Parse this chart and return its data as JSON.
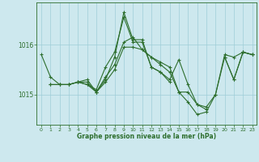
{
  "title": "Graphe pression niveau de la mer (hPa)",
  "bg_color": "#cde8ee",
  "grid_color": "#9ecdd8",
  "line_color": "#2d6e2d",
  "xlim_min": -0.5,
  "xlim_max": 23.5,
  "ylim_min": 1014.4,
  "ylim_max": 1016.85,
  "yticks": [
    1015,
    1016
  ],
  "xticks": [
    0,
    1,
    2,
    3,
    4,
    5,
    6,
    7,
    8,
    9,
    10,
    11,
    12,
    13,
    14,
    15,
    16,
    17,
    18,
    19,
    20,
    21,
    22,
    23
  ],
  "series1": [
    1015.8,
    1015.35,
    1015.2,
    1015.2,
    1015.25,
    1015.2,
    1015.05,
    1015.35,
    1015.6,
    1016.05,
    1016.15,
    1015.9,
    1015.75,
    1015.6,
    1015.45,
    1015.05,
    1015.05,
    1014.8,
    1014.75,
    1015.0,
    1015.8,
    1015.75,
    1015.85,
    1015.8
  ],
  "series2": [
    null,
    1015.2,
    1015.2,
    1015.2,
    1015.25,
    1015.2,
    1015.1,
    1015.55,
    1015.85,
    1016.55,
    1016.05,
    1016.05,
    1015.55,
    1015.45,
    1015.3,
    1015.7,
    1015.2,
    1014.8,
    1014.7,
    null,
    null,
    null,
    null,
    null
  ],
  "series3": [
    null,
    null,
    null,
    null,
    1015.25,
    1015.3,
    1015.05,
    1015.3,
    1015.75,
    1016.65,
    1016.1,
    1016.1,
    1015.55,
    1015.45,
    1015.25,
    null,
    null,
    null,
    null,
    null,
    null,
    null,
    null,
    null
  ],
  "series4": [
    null,
    null,
    null,
    null,
    null,
    null,
    null,
    null,
    null,
    null,
    null,
    null,
    null,
    null,
    null,
    null,
    null,
    null,
    null,
    null,
    1015.75,
    1015.3,
    1015.85,
    1015.8
  ],
  "series5": [
    null,
    1015.2,
    1015.2,
    1015.2,
    1015.25,
    1015.25,
    1015.05,
    1015.25,
    1015.5,
    1015.95,
    1015.95,
    1015.9,
    1015.75,
    1015.65,
    1015.55,
    1015.05,
    1014.85,
    1014.6,
    1014.65,
    1015.0,
    1015.75,
    1015.3,
    1015.85,
    1015.8
  ]
}
